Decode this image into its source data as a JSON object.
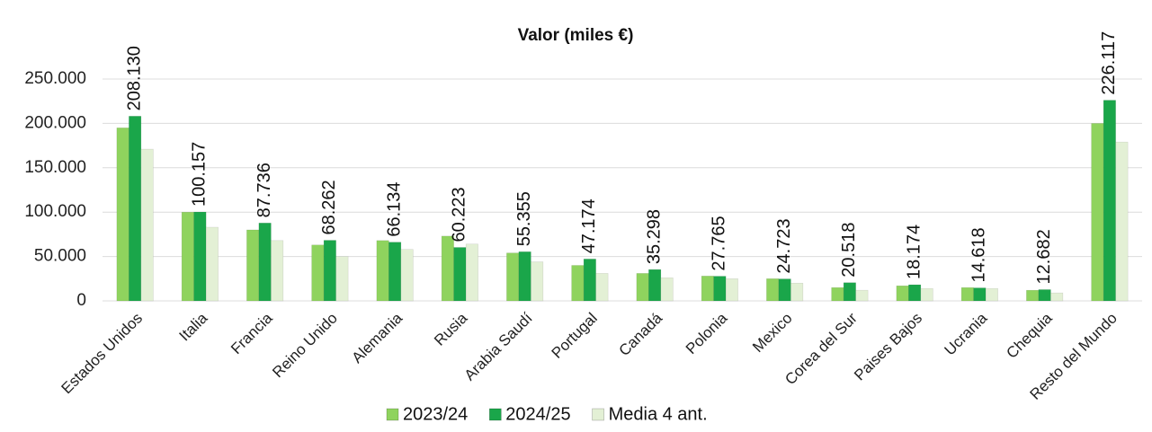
{
  "chart_data": {
    "type": "bar",
    "title": "Valor (miles €)",
    "categories": [
      "Estados Unidos",
      "Italia",
      "Francia",
      "Reino Unido",
      "Alemania",
      "Rusia",
      "Arabia Saudí",
      "Portugal",
      "Canadá",
      "Polonia",
      "Mexico",
      "Corea del Sur",
      "Paises Bajos",
      "Ucrania",
      "Chequia",
      "Resto del Mundo"
    ],
    "series": [
      {
        "name": "2023/24",
        "color": "#8fd35e",
        "values": [
          195000,
          100000,
          80000,
          63000,
          68000,
          73000,
          54000,
          40000,
          31000,
          28000,
          25000,
          15000,
          17000,
          15000,
          12000,
          200000
        ]
      },
      {
        "name": "2024/25",
        "color": "#1aa64a",
        "values": [
          208130,
          100157,
          87736,
          68262,
          66134,
          60223,
          55355,
          47174,
          35298,
          27765,
          24723,
          20518,
          18174,
          14618,
          12682,
          226117
        ],
        "value_labels": [
          "208.130",
          "100.157",
          "87.736",
          "68.262",
          "66.134",
          "60.223",
          "55.355",
          "47.174",
          "35.298",
          "27.765",
          "24.723",
          "20.518",
          "18.174",
          "14.618",
          "12.682",
          "226.117"
        ]
      },
      {
        "name": "Media 4 ant.",
        "color": "#e3f0d5",
        "values": [
          171000,
          83000,
          68000,
          50000,
          58000,
          64000,
          44000,
          31000,
          26000,
          25000,
          20000,
          12000,
          14000,
          14000,
          9000,
          179000
        ]
      }
    ],
    "ylim": [
      0,
      250000
    ],
    "yticks": [
      0,
      {
        "value": 50000,
        "label": "50.000"
      },
      {
        "value": 100000,
        "label": "100.000"
      },
      {
        "value": 150000,
        "label": "150.000"
      },
      {
        "value": 200000,
        "label": "200.000"
      },
      {
        "value": 250000,
        "label": "250.000"
      }
    ],
    "grid": true,
    "legend": "bottom"
  }
}
